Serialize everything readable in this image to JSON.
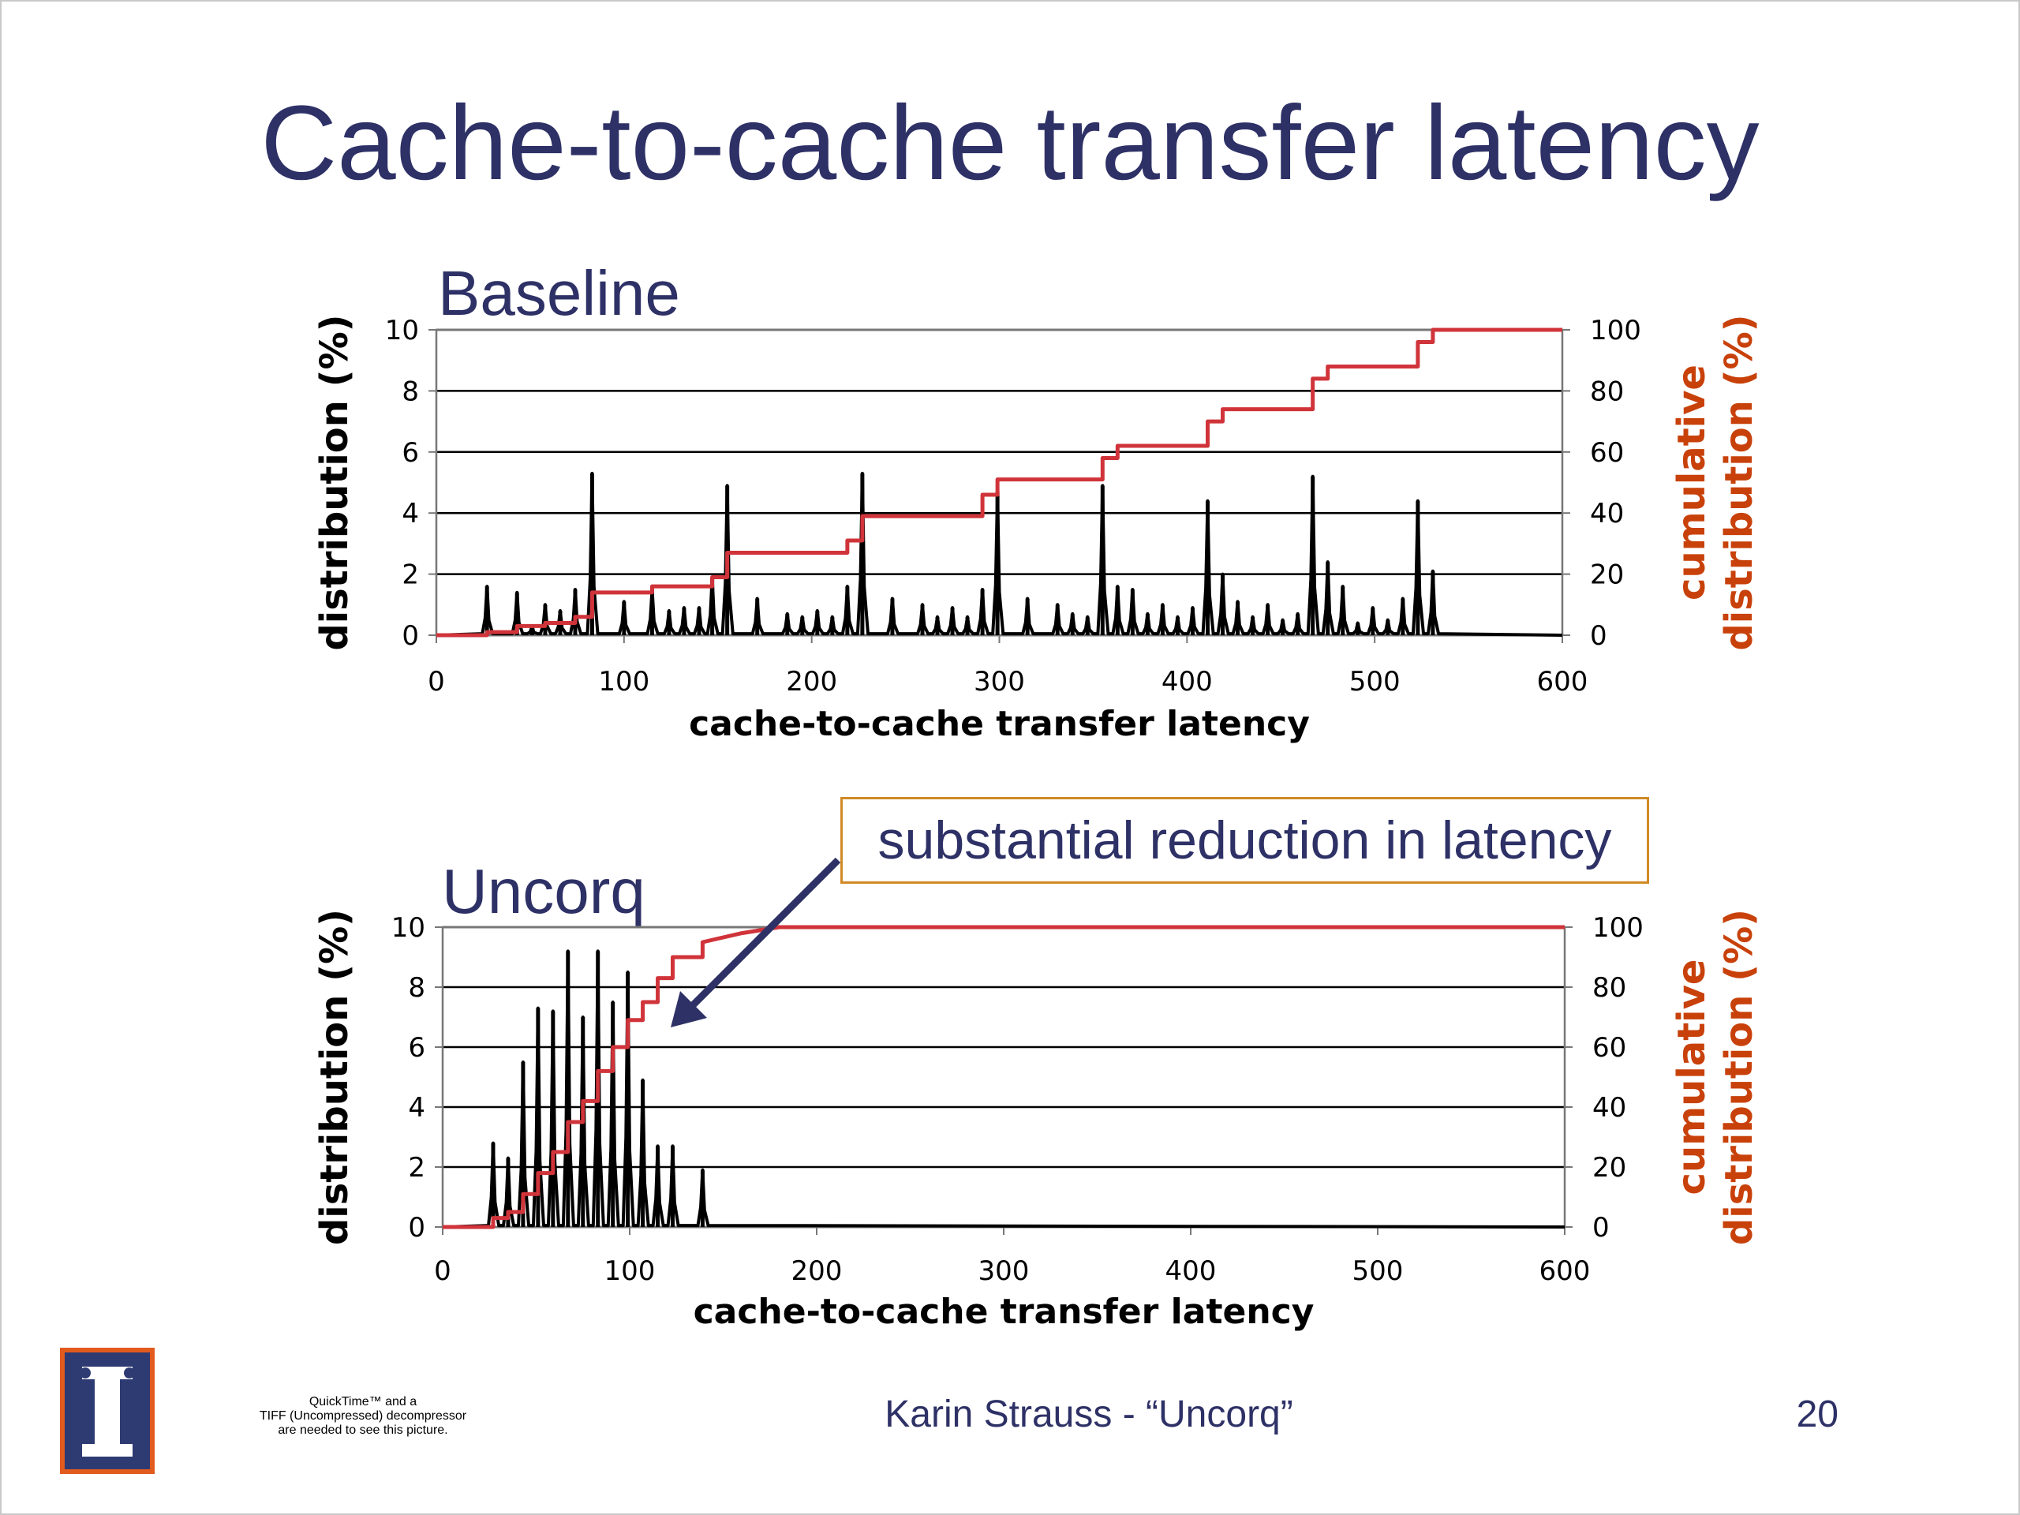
{
  "slide": {
    "title": "Cache-to-cache transfer latency",
    "callout": "substantial reduction in latency",
    "footer": "Karin Strauss - “Uncorq”",
    "page_number": "20",
    "quicktime_note": [
      "QuickTime™ and a",
      "TIFF (Uncompressed) decompressor",
      "are needed to see this picture."
    ],
    "logo_icon": "university-of-illinois-block-i-logo",
    "colors": {
      "title": "#2e3166",
      "cumulative": "#d0343a",
      "secondary_axis_label": "#c8410a",
      "callout_border": "#d08a25"
    }
  },
  "chart_data": [
    {
      "type": "line",
      "title": "Baseline",
      "xlabel": "cache-to-cache transfer latency",
      "ylabel": "distribution (%)",
      "y2label": [
        "cumulative",
        "distribution (%)"
      ],
      "xlim": [
        0,
        600
      ],
      "ylim": [
        0,
        10
      ],
      "y2lim": [
        0,
        100
      ],
      "xticks": [
        "0",
        "100",
        "200",
        "300",
        "400",
        "500",
        "600"
      ],
      "yticks": [
        "0",
        "2",
        "4",
        "6",
        "8",
        "10"
      ],
      "y2ticks": [
        "0",
        "20",
        "40",
        "60",
        "80",
        "100"
      ],
      "grid": true,
      "series": [
        {
          "axis": "left",
          "color": "#000000",
          "peaks": [
            [
              27,
              1.6
            ],
            [
              43,
              1.4
            ],
            [
              51,
              0.3
            ],
            [
              58,
              1.0
            ],
            [
              66,
              0.8
            ],
            [
              74,
              1.5
            ],
            [
              83,
              5.3
            ],
            [
              100,
              1.1
            ],
            [
              115,
              1.5
            ],
            [
              124,
              0.8
            ],
            [
              132,
              0.9
            ],
            [
              140,
              0.9
            ],
            [
              147,
              1.9
            ],
            [
              155,
              4.9
            ],
            [
              171,
              1.2
            ],
            [
              187,
              0.7
            ],
            [
              195,
              0.6
            ],
            [
              203,
              0.8
            ],
            [
              211,
              0.6
            ],
            [
              219,
              1.6
            ],
            [
              227,
              5.3
            ],
            [
              243,
              1.2
            ],
            [
              259,
              1.0
            ],
            [
              267,
              0.6
            ],
            [
              275,
              0.9
            ],
            [
              283,
              0.6
            ],
            [
              291,
              1.5
            ],
            [
              299,
              4.7
            ],
            [
              315,
              1.2
            ],
            [
              331,
              1.0
            ],
            [
              339,
              0.7
            ],
            [
              347,
              0.6
            ],
            [
              355,
              4.9
            ],
            [
              363,
              1.6
            ],
            [
              371,
              1.5
            ],
            [
              379,
              0.7
            ],
            [
              387,
              1.0
            ],
            [
              395,
              0.6
            ],
            [
              403,
              0.9
            ],
            [
              411,
              4.4
            ],
            [
              419,
              2.0
            ],
            [
              427,
              1.1
            ],
            [
              435,
              0.6
            ],
            [
              443,
              1.0
            ],
            [
              451,
              0.5
            ],
            [
              459,
              0.7
            ],
            [
              467,
              5.2
            ],
            [
              475,
              2.4
            ],
            [
              483,
              1.6
            ],
            [
              491,
              0.4
            ],
            [
              499,
              0.9
            ],
            [
              507,
              0.5
            ],
            [
              515,
              1.2
            ],
            [
              523,
              4.4
            ],
            [
              531,
              2.1
            ]
          ]
        },
        {
          "axis": "right",
          "color": "#d0343a",
          "name": "",
          "points": [
            [
              0,
              0
            ],
            [
              27,
              0
            ],
            [
              27,
              1
            ],
            [
              43,
              1
            ],
            [
              43,
              3
            ],
            [
              58,
              3
            ],
            [
              58,
              4
            ],
            [
              74,
              4
            ],
            [
              74,
              6
            ],
            [
              83,
              6
            ],
            [
              83,
              14
            ],
            [
              115,
              14
            ],
            [
              115,
              16
            ],
            [
              147,
              16
            ],
            [
              147,
              19
            ],
            [
              155,
              19
            ],
            [
              155,
              27
            ],
            [
              219,
              27
            ],
            [
              219,
              31
            ],
            [
              227,
              31
            ],
            [
              227,
              39
            ],
            [
              291,
              39
            ],
            [
              291,
              46
            ],
            [
              299,
              46
            ],
            [
              299,
              51
            ],
            [
              355,
              51
            ],
            [
              355,
              58
            ],
            [
              363,
              58
            ],
            [
              363,
              62
            ],
            [
              411,
              62
            ],
            [
              411,
              70
            ],
            [
              419,
              70
            ],
            [
              419,
              74
            ],
            [
              467,
              74
            ],
            [
              467,
              84
            ],
            [
              475,
              84
            ],
            [
              475,
              88
            ],
            [
              523,
              88
            ],
            [
              523,
              96
            ],
            [
              531,
              96
            ],
            [
              531,
              100
            ],
            [
              600,
              100
            ]
          ]
        }
      ]
    },
    {
      "type": "line",
      "title": "Uncorq",
      "xlabel": "cache-to-cache transfer latency",
      "ylabel": "distribution (%)",
      "y2label": [
        "cumulative",
        "distribution (%)"
      ],
      "xlim": [
        0,
        600
      ],
      "ylim": [
        0,
        10
      ],
      "y2lim": [
        0,
        100
      ],
      "xticks": [
        "0",
        "100",
        "200",
        "300",
        "400",
        "500",
        "600"
      ],
      "yticks": [
        "0",
        "2",
        "4",
        "6",
        "8",
        "10"
      ],
      "y2ticks": [
        "0",
        "20",
        "40",
        "60",
        "80",
        "100"
      ],
      "grid": true,
      "series": [
        {
          "axis": "left",
          "color": "#000000",
          "peaks": [
            [
              27,
              2.8
            ],
            [
              35,
              2.3
            ],
            [
              43,
              5.5
            ],
            [
              51,
              7.3
            ],
            [
              59,
              7.2
            ],
            [
              67,
              9.2
            ],
            [
              75,
              7.0
            ],
            [
              83,
              9.2
            ],
            [
              91,
              7.5
            ],
            [
              99,
              8.5
            ],
            [
              107,
              4.9
            ],
            [
              115,
              2.7
            ],
            [
              123,
              2.7
            ],
            [
              139,
              1.9
            ]
          ]
        },
        {
          "axis": "right",
          "color": "#d0343a",
          "name": "",
          "points": [
            [
              0,
              0
            ],
            [
              27,
              0
            ],
            [
              27,
              3
            ],
            [
              35,
              3
            ],
            [
              35,
              5
            ],
            [
              43,
              5
            ],
            [
              43,
              11
            ],
            [
              51,
              11
            ],
            [
              51,
              18
            ],
            [
              59,
              18
            ],
            [
              59,
              25
            ],
            [
              67,
              25
            ],
            [
              67,
              35
            ],
            [
              75,
              35
            ],
            [
              75,
              42
            ],
            [
              83,
              42
            ],
            [
              83,
              52
            ],
            [
              91,
              52
            ],
            [
              91,
              60
            ],
            [
              99,
              60
            ],
            [
              99,
              69
            ],
            [
              107,
              69
            ],
            [
              107,
              75
            ],
            [
              115,
              75
            ],
            [
              115,
              83
            ],
            [
              123,
              83
            ],
            [
              123,
              90
            ],
            [
              139,
              90
            ],
            [
              139,
              95
            ],
            [
              160,
              98
            ],
            [
              180,
              100
            ],
            [
              600,
              100
            ]
          ]
        }
      ]
    }
  ]
}
